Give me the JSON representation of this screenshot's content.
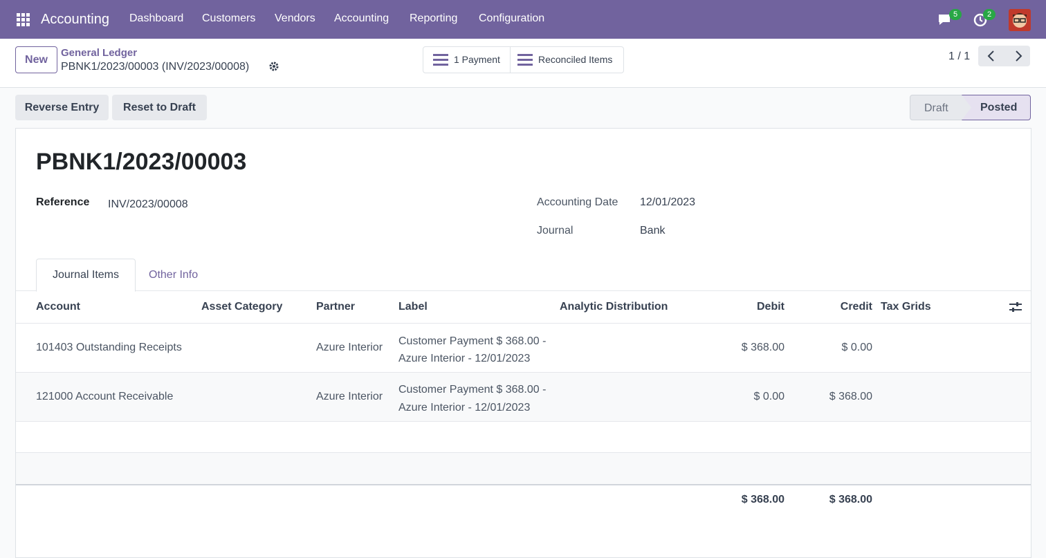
{
  "navbar": {
    "app": "Accounting",
    "menu": [
      "Dashboard",
      "Customers",
      "Vendors",
      "Accounting",
      "Reporting",
      "Configuration"
    ],
    "messages_count": 5,
    "activities_count": 2
  },
  "control_panel": {
    "new_button": "New",
    "breadcrumb": "General Ledger",
    "record_name": "PBNK1/2023/00003 (INV/2023/00008)",
    "smart_buttons": [
      "1 Payment",
      "Reconciled Items"
    ],
    "pager": "1 / 1"
  },
  "actions": {
    "buttons": [
      "Reverse Entry",
      "Reset to Draft"
    ],
    "statusbar": [
      "Draft",
      "Posted"
    ]
  },
  "form": {
    "title": "PBNK1/2023/00003",
    "fields": [
      {
        "label": "Reference",
        "value": "INV/2023/00008"
      },
      {
        "label": "Accounting Date",
        "value": "12/01/2023"
      },
      {
        "label": "Journal",
        "value": "Bank"
      }
    ],
    "tabs": [
      "Journal Items",
      "Other Info"
    ]
  },
  "table": {
    "columns": [
      "Account",
      "Asset Category",
      "Partner",
      "Label",
      "Analytic Distribution",
      "Debit",
      "Credit",
      "Tax Grids"
    ],
    "rows": [
      {
        "account": "101403 Outstanding Receipts",
        "partner": "Azure Interior",
        "label": "Customer Payment $ 368.00 - Azure Interior - 12/01/2023",
        "debit": "$ 368.00",
        "credit": "$ 0.00"
      },
      {
        "account": "121000 Account Receivable",
        "partner": "Azure Interior",
        "label": "Customer Payment $ 368.00 - Azure Interior - 12/01/2023",
        "debit": "$ 0.00",
        "credit": "$ 368.00"
      }
    ],
    "totals": {
      "debit": "$ 368.00",
      "credit": "$ 368.00"
    }
  }
}
